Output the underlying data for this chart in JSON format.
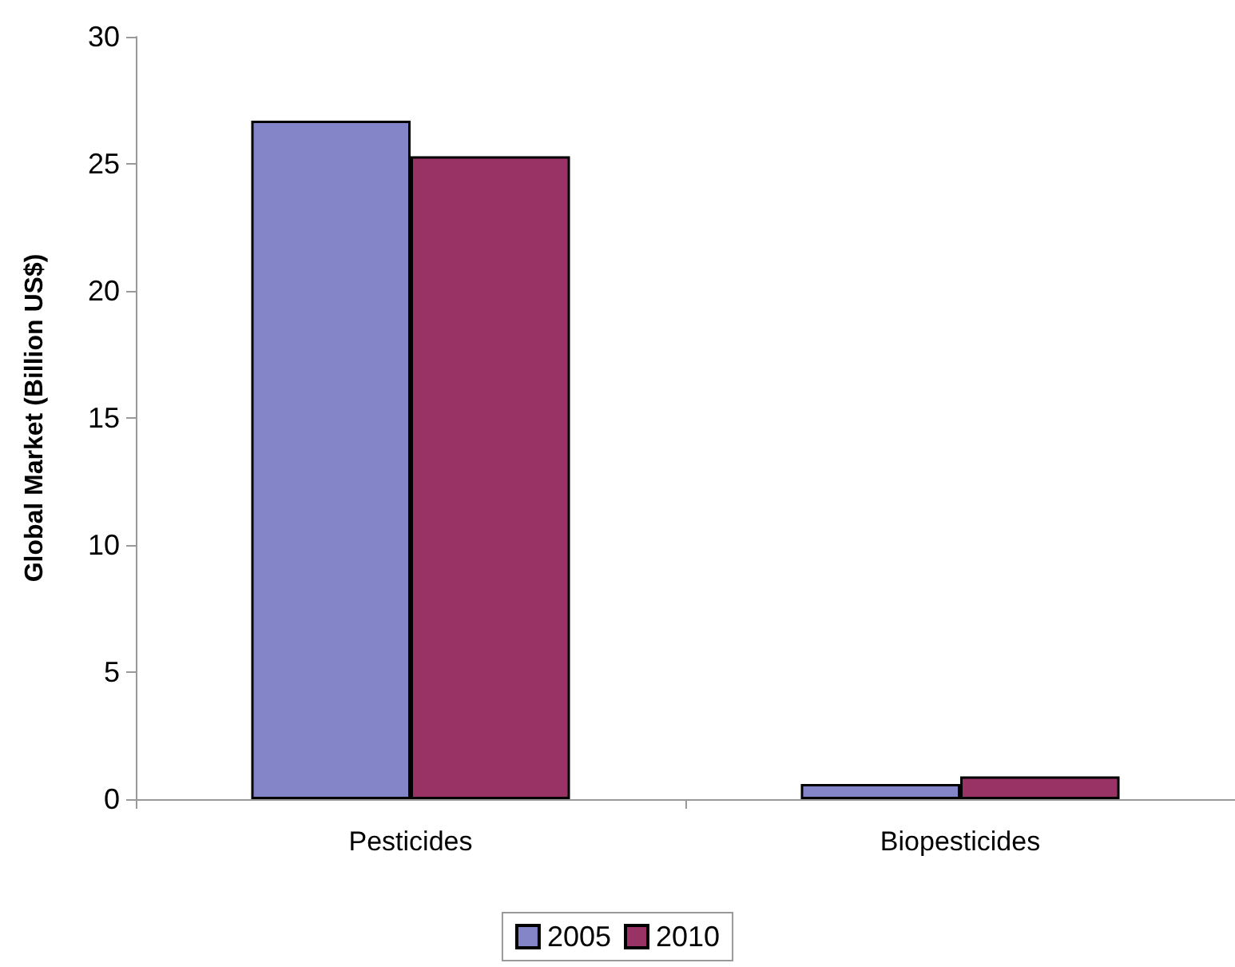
{
  "chart_data": {
    "type": "bar",
    "ylabel": "Global Market (Billion US$)",
    "categories": [
      "Pesticides",
      "Biopesticides"
    ],
    "series": [
      {
        "name": "2005",
        "color": "#8484c8",
        "values": [
          26.7,
          0.6
        ]
      },
      {
        "name": "2010",
        "color": "#993366",
        "values": [
          25.3,
          0.9
        ]
      }
    ],
    "ylim": [
      0,
      30
    ],
    "yticks": [
      0,
      5,
      10,
      15,
      20,
      25,
      30
    ],
    "grid": false,
    "legend": "bottom"
  }
}
